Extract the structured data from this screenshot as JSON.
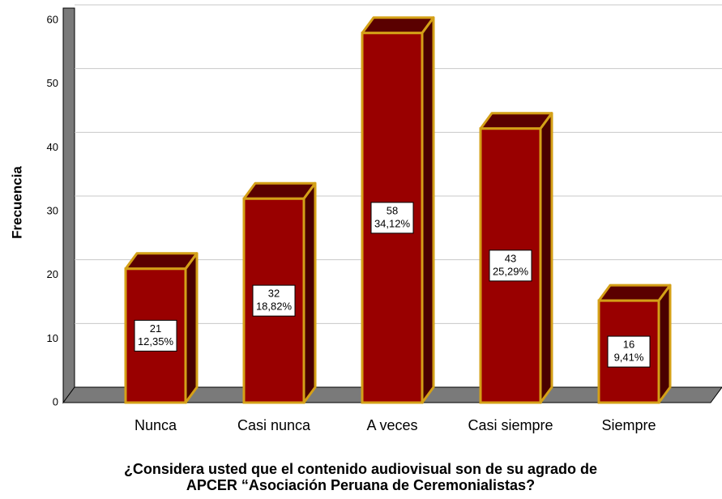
{
  "chart_data": {
    "type": "bar3d",
    "ylabel": "Frecuencia",
    "xlabel": [
      "¿Considera usted que el contenido audiovisual son de su agrado de",
      "APCER “Asociación Peruana de Ceremonialistas?"
    ],
    "categories": [
      "Nunca",
      "Casi nunca",
      "A veces",
      "Casi siempre",
      "Siempre"
    ],
    "values": [
      21,
      32,
      58,
      43,
      16
    ],
    "percentages": [
      12.35,
      18.82,
      34.12,
      25.29,
      9.41
    ],
    "percentage_labels": [
      "12,35%",
      "18,82%",
      "34,12%",
      "25,29%",
      "9,41%"
    ],
    "color": "#990000",
    "ylim": [
      0,
      60
    ],
    "yticks": [
      0,
      10,
      20,
      30,
      40,
      50,
      60
    ],
    "grid": true
  }
}
